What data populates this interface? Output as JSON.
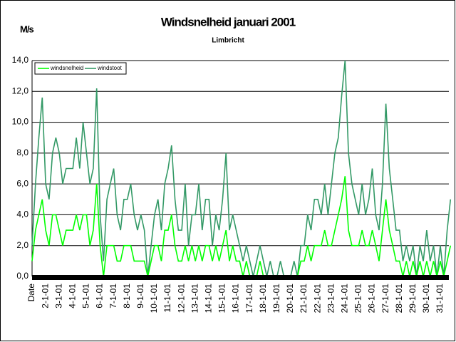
{
  "chart_data": {
    "type": "line",
    "title": "Windsnelheid januari 2001",
    "subtitle": "Limbricht",
    "y_label": "M/s",
    "categories": [
      "Date",
      null,
      null,
      null,
      "2-1-01",
      null,
      null,
      null,
      "3-1-01",
      null,
      null,
      null,
      "4-1-01",
      null,
      null,
      null,
      "5-1-01",
      null,
      null,
      null,
      "6-1-01",
      null,
      null,
      null,
      "7-1-01",
      null,
      null,
      null,
      "8-1-01",
      null,
      null,
      null,
      "9-1-01",
      null,
      null,
      null,
      "10-1-01",
      null,
      null,
      null,
      "11-1-01",
      null,
      null,
      null,
      "12-1-01",
      null,
      null,
      null,
      "13-1-01",
      null,
      null,
      null,
      "14-1-01",
      null,
      null,
      null,
      "15-1-01",
      null,
      null,
      null,
      "16-1-01",
      null,
      null,
      null,
      "17-1-01",
      null,
      null,
      null,
      "18-1-01",
      null,
      null,
      null,
      "19-1-01",
      null,
      null,
      null,
      "20-1-01",
      null,
      null,
      null,
      "21-1-01",
      null,
      null,
      null,
      "22-1-01",
      null,
      null,
      null,
      "23-1-01",
      null,
      null,
      null,
      "24-1-01",
      null,
      null,
      null,
      "25-1-01",
      null,
      null,
      null,
      "26-1-01",
      null,
      null,
      null,
      "27-1-01",
      null,
      null,
      null,
      "28-1-01",
      null,
      null,
      null,
      "29-1-01",
      null,
      null,
      null,
      "30-1-01",
      null,
      null,
      null,
      "31-1-01",
      null,
      null,
      null
    ],
    "series": [
      {
        "name": "windstoot",
        "color": "#339966",
        "values": [
          2,
          6,
          9,
          11.6,
          6,
          5,
          8,
          9,
          8,
          6,
          7,
          7,
          7,
          9,
          7,
          10,
          8,
          6,
          7,
          12.2,
          4,
          1,
          5,
          6,
          7,
          4,
          3,
          5,
          5,
          6,
          4,
          3,
          4,
          3,
          0,
          2,
          4,
          5,
          3,
          6,
          7,
          8.5,
          5,
          3,
          3,
          6,
          2,
          4,
          4,
          6,
          3,
          5,
          5,
          2,
          4,
          3,
          5,
          8,
          3,
          4,
          3,
          2,
          1,
          2,
          1,
          0,
          1,
          2,
          1,
          0,
          1,
          0,
          0,
          1,
          0,
          0,
          0,
          1,
          0,
          2,
          2,
          4,
          3,
          5,
          5,
          4,
          6,
          4,
          6,
          8,
          9,
          11.7,
          14,
          8,
          6,
          5,
          4,
          6,
          4,
          5,
          7,
          4,
          3,
          6,
          11.2,
          7,
          5,
          3,
          3,
          1,
          2,
          1,
          2,
          0,
          2,
          1,
          3,
          1,
          2,
          0,
          2,
          0,
          3,
          5
        ]
      },
      {
        "name": "windsnelheid",
        "color": "#00ff00",
        "values": [
          1,
          3,
          4,
          5,
          3,
          2,
          4,
          4,
          3,
          2,
          3,
          3,
          3,
          4,
          3,
          4,
          4,
          2,
          3,
          6,
          2,
          0,
          2,
          2,
          2,
          1,
          1,
          2,
          2,
          2,
          1,
          1,
          1,
          1,
          0,
          1,
          2,
          2,
          1,
          3,
          3,
          4,
          2,
          1,
          1,
          2,
          1,
          2,
          1,
          2,
          1,
          2,
          2,
          1,
          2,
          1,
          2,
          3,
          1,
          2,
          1,
          1,
          0,
          1,
          0,
          0,
          0,
          1,
          0,
          0,
          0,
          0,
          0,
          0,
          0,
          0,
          0,
          0,
          0,
          1,
          1,
          2,
          1,
          2,
          2,
          2,
          3,
          2,
          2,
          3,
          4,
          5,
          6.5,
          3,
          2,
          2,
          2,
          3,
          2,
          2,
          3,
          2,
          1,
          3,
          5,
          3,
          2,
          1,
          1,
          0,
          1,
          0,
          1,
          0,
          1,
          0,
          1,
          0,
          1,
          0,
          1,
          0,
          1,
          2
        ]
      }
    ],
    "legend_order": [
      "windsnelheid",
      "windstoot"
    ],
    "ylim": [
      0,
      14
    ],
    "yticks": [
      {
        "value": 0,
        "label": "0,0"
      },
      {
        "value": 2,
        "label": "2,0"
      },
      {
        "value": 4,
        "label": "4,0"
      },
      {
        "value": 6,
        "label": "6,0"
      },
      {
        "value": 8,
        "label": "8,0"
      },
      {
        "value": 10,
        "label": "10,0"
      },
      {
        "value": 12,
        "label": "12,0"
      },
      {
        "value": 14,
        "label": "14,0"
      }
    ],
    "grid": true,
    "legend": "top-left"
  }
}
